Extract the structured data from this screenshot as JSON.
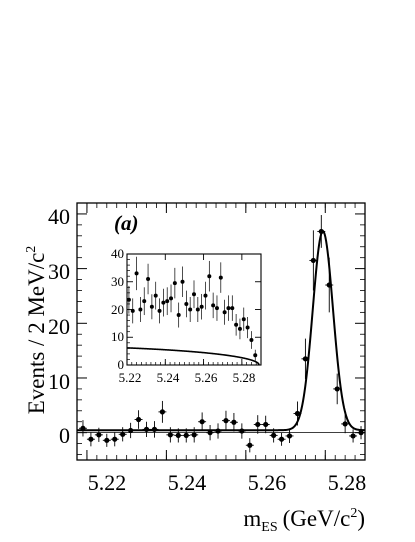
{
  "chart_data": [
    {
      "type": "scatter",
      "panel_label": "(a)",
      "xlabel_main": "m",
      "xlabel_sub": "ES",
      "xlabel_unit": "(GeV/c",
      "xlabel_sup": "2",
      "xlabel_close": ")",
      "ylabel": "Events / 2 MeV/c",
      "ylabel_sup": "2",
      "xlim": [
        5.2175,
        5.29
      ],
      "ylim": [
        -5,
        42
      ],
      "xticks": [
        5.22,
        5.24,
        5.26,
        5.28
      ],
      "xtick_labels": [
        "5.22",
        "5.24",
        "5.26",
        "5.28"
      ],
      "yticks": [
        0,
        10,
        20,
        30,
        40
      ],
      "ytick_labels": [
        "0",
        "10",
        "20",
        "30",
        "40"
      ],
      "grid": false,
      "baseline_y": 0,
      "series": [
        {
          "kind": "data-points-with-errors",
          "points": [
            [
              5.219,
              0.8,
              1.5
            ],
            [
              5.221,
              -1.2,
              1.3
            ],
            [
              5.223,
              -0.4,
              1.3
            ],
            [
              5.225,
              -1.4,
              1.2
            ],
            [
              5.227,
              -1.2,
              1.3
            ],
            [
              5.229,
              -0.3,
              1.3
            ],
            [
              5.231,
              0.4,
              1.4
            ],
            [
              5.233,
              2.4,
              1.7
            ],
            [
              5.235,
              0.6,
              1.4
            ],
            [
              5.237,
              0.6,
              1.5
            ],
            [
              5.239,
              3.8,
              2.0
            ],
            [
              5.241,
              -0.4,
              1.4
            ],
            [
              5.243,
              -0.5,
              1.3
            ],
            [
              5.245,
              -0.5,
              1.3
            ],
            [
              5.247,
              -0.4,
              1.4
            ],
            [
              5.249,
              2.0,
              1.7
            ],
            [
              5.251,
              0.0,
              1.4
            ],
            [
              5.253,
              0.3,
              1.4
            ],
            [
              5.255,
              2.2,
              1.8
            ],
            [
              5.257,
              1.9,
              1.7
            ],
            [
              5.259,
              0.3,
              1.4
            ],
            [
              5.261,
              -2.3,
              1.3
            ],
            [
              5.263,
              1.5,
              1.7
            ],
            [
              5.265,
              1.5,
              1.6
            ],
            [
              5.267,
              -0.5,
              1.3
            ],
            [
              5.269,
              -1.2,
              1.2
            ],
            [
              5.271,
              -0.6,
              1.3
            ],
            [
              5.273,
              3.5,
              2.2
            ],
            [
              5.275,
              13.5,
              3.7
            ],
            [
              5.277,
              31.5,
              5.5
            ],
            [
              5.279,
              36.8,
              3.0
            ],
            [
              5.281,
              27.0,
              5.0
            ],
            [
              5.283,
              8.0,
              2.8
            ],
            [
              5.285,
              1.6,
              1.7
            ],
            [
              5.287,
              -0.6,
              1.2
            ],
            [
              5.289,
              0.0,
              1.2
            ]
          ]
        },
        {
          "kind": "fit-curve",
          "model": "gaussian-plus-flat",
          "mean": 5.2794,
          "sigma": 0.00255,
          "amplitude": 36.4,
          "offset": 0.45
        }
      ]
    },
    {
      "type": "scatter",
      "panel": "inset",
      "xlim": [
        5.22,
        5.29
      ],
      "ylim": [
        0,
        40
      ],
      "xticks": [
        5.22,
        5.24,
        5.26,
        5.28
      ],
      "xtick_labels": [
        "5.22",
        "5.24",
        "5.26",
        "5.28"
      ],
      "yticks": [
        0,
        10,
        20,
        30,
        40
      ],
      "ytick_labels": [
        "0",
        "10",
        "20",
        "30",
        "40"
      ],
      "grid": false,
      "series": [
        {
          "kind": "data-points-with-errors",
          "points": [
            [
              5.221,
              23.5,
              5.0
            ],
            [
              5.223,
              19.5,
              4.5
            ],
            [
              5.225,
              33.0,
              6.0
            ],
            [
              5.227,
              20.0,
              4.5
            ],
            [
              5.229,
              23.0,
              5.0
            ],
            [
              5.231,
              31.0,
              5.5
            ],
            [
              5.233,
              21.0,
              4.5
            ],
            [
              5.235,
              25.0,
              5.0
            ],
            [
              5.237,
              19.5,
              4.5
            ],
            [
              5.239,
              22.5,
              5.0
            ],
            [
              5.241,
              23.0,
              5.0
            ],
            [
              5.243,
              24.0,
              5.0
            ],
            [
              5.245,
              29.5,
              5.5
            ],
            [
              5.247,
              18.0,
              4.5
            ],
            [
              5.249,
              30.0,
              5.5
            ],
            [
              5.251,
              22.0,
              4.8
            ],
            [
              5.253,
              20.0,
              4.5
            ],
            [
              5.255,
              25.5,
              5.0
            ],
            [
              5.257,
              20.0,
              4.5
            ],
            [
              5.259,
              21.0,
              4.6
            ],
            [
              5.261,
              25.0,
              5.0
            ],
            [
              5.263,
              32.0,
              5.5
            ],
            [
              5.265,
              21.5,
              4.6
            ],
            [
              5.267,
              20.5,
              4.6
            ],
            [
              5.269,
              31.5,
              5.5
            ],
            [
              5.271,
              19.0,
              4.5
            ],
            [
              5.273,
              20.5,
              4.6
            ],
            [
              5.275,
              20.5,
              4.6
            ],
            [
              5.277,
              14.5,
              3.9
            ],
            [
              5.279,
              13.0,
              3.7
            ],
            [
              5.281,
              16.5,
              4.2
            ],
            [
              5.283,
              13.5,
              3.8
            ],
            [
              5.285,
              9.0,
              3.2
            ],
            [
              5.287,
              3.5,
              2.0
            ]
          ]
        },
        {
          "kind": "fit-curve",
          "model": "argus",
          "endpoint": 5.289,
          "norm": 46.0,
          "curvature": 6.5
        }
      ]
    }
  ]
}
